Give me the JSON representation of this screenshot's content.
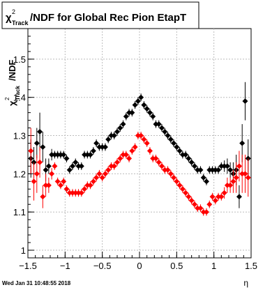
{
  "chart_data": {
    "type": "scatter",
    "title": "/NDF for Global Rec Pion EtapT",
    "title_prefix": "χ",
    "title_sup": "2",
    "title_sub": "Track",
    "xlabel": "η",
    "ylabel": "/NDF",
    "ylabel_prefix": "χ",
    "ylabel_sup": "2",
    "ylabel_sub": "Track",
    "xlim": [
      -1.5,
      1.5
    ],
    "ylim": [
      0.98,
      1.58
    ],
    "xticks": [
      {
        "v": -1.5,
        "label": "−1.5"
      },
      {
        "v": -1.0,
        "label": "−1"
      },
      {
        "v": -0.5,
        "label": "−0.5"
      },
      {
        "v": 0.0,
        "label": "0"
      },
      {
        "v": 0.5,
        "label": "0.5"
      },
      {
        "v": 1.0,
        "label": "1"
      },
      {
        "v": 1.5,
        "label": "1.5"
      }
    ],
    "yticks": [
      {
        "v": 1.0,
        "label": "1"
      },
      {
        "v": 1.1,
        "label": "1.1"
      },
      {
        "v": 1.2,
        "label": "1.2"
      },
      {
        "v": 1.3,
        "label": "1.3"
      },
      {
        "v": 1.4,
        "label": "1.4"
      },
      {
        "v": 1.5,
        "label": "1.5"
      }
    ],
    "grid": true,
    "series": [
      {
        "color": "#000000",
        "points": [
          {
            "x": -1.46,
            "y": 1.24,
            "e": 0.05
          },
          {
            "x": -1.42,
            "y": 1.23,
            "e": 0.04
          },
          {
            "x": -1.38,
            "y": 1.28,
            "e": 0.04
          },
          {
            "x": -1.34,
            "y": 1.31,
            "e": 0.05
          },
          {
            "x": -1.3,
            "y": 1.27,
            "e": 0.04
          },
          {
            "x": -1.26,
            "y": 1.21,
            "e": 0.03
          },
          {
            "x": -1.22,
            "y": 1.22,
            "e": 0.02
          },
          {
            "x": -1.18,
            "y": 1.25,
            "e": 0.015
          },
          {
            "x": -1.14,
            "y": 1.25,
            "e": 0.01
          },
          {
            "x": -1.1,
            "y": 1.25,
            "e": 0.01
          },
          {
            "x": -1.06,
            "y": 1.25,
            "e": 0.01
          },
          {
            "x": -1.02,
            "y": 1.25,
            "e": 0.01
          },
          {
            "x": -0.98,
            "y": 1.24,
            "e": 0.01
          },
          {
            "x": -0.94,
            "y": 1.21,
            "e": 0.01
          },
          {
            "x": -0.9,
            "y": 1.22,
            "e": 0.01
          },
          {
            "x": -0.86,
            "y": 1.23,
            "e": 0.01
          },
          {
            "x": -0.82,
            "y": 1.22,
            "e": 0.01
          },
          {
            "x": -0.78,
            "y": 1.22,
            "e": 0.01
          },
          {
            "x": -0.74,
            "y": 1.25,
            "e": 0.01
          },
          {
            "x": -0.7,
            "y": 1.25,
            "e": 0.01
          },
          {
            "x": -0.66,
            "y": 1.25,
            "e": 0.01
          },
          {
            "x": -0.62,
            "y": 1.26,
            "e": 0.01
          },
          {
            "x": -0.58,
            "y": 1.28,
            "e": 0.01
          },
          {
            "x": -0.54,
            "y": 1.27,
            "e": 0.01
          },
          {
            "x": -0.5,
            "y": 1.27,
            "e": 0.01
          },
          {
            "x": -0.46,
            "y": 1.27,
            "e": 0.01
          },
          {
            "x": -0.42,
            "y": 1.29,
            "e": 0.01
          },
          {
            "x": -0.38,
            "y": 1.3,
            "e": 0.01
          },
          {
            "x": -0.34,
            "y": 1.3,
            "e": 0.01
          },
          {
            "x": -0.3,
            "y": 1.31,
            "e": 0.01
          },
          {
            "x": -0.26,
            "y": 1.32,
            "e": 0.01
          },
          {
            "x": -0.22,
            "y": 1.33,
            "e": 0.01
          },
          {
            "x": -0.18,
            "y": 1.35,
            "e": 0.01
          },
          {
            "x": -0.14,
            "y": 1.36,
            "e": 0.01
          },
          {
            "x": -0.1,
            "y": 1.36,
            "e": 0.01
          },
          {
            "x": -0.06,
            "y": 1.38,
            "e": 0.01
          },
          {
            "x": -0.02,
            "y": 1.39,
            "e": 0.01
          },
          {
            "x": 0.02,
            "y": 1.4,
            "e": 0.01
          },
          {
            "x": 0.06,
            "y": 1.38,
            "e": 0.01
          },
          {
            "x": 0.1,
            "y": 1.37,
            "e": 0.01
          },
          {
            "x": 0.14,
            "y": 1.36,
            "e": 0.01
          },
          {
            "x": 0.18,
            "y": 1.35,
            "e": 0.01
          },
          {
            "x": 0.22,
            "y": 1.33,
            "e": 0.01
          },
          {
            "x": 0.26,
            "y": 1.33,
            "e": 0.01
          },
          {
            "x": 0.3,
            "y": 1.32,
            "e": 0.01
          },
          {
            "x": 0.34,
            "y": 1.31,
            "e": 0.01
          },
          {
            "x": 0.38,
            "y": 1.3,
            "e": 0.01
          },
          {
            "x": 0.42,
            "y": 1.29,
            "e": 0.01
          },
          {
            "x": 0.46,
            "y": 1.28,
            "e": 0.01
          },
          {
            "x": 0.5,
            "y": 1.27,
            "e": 0.01
          },
          {
            "x": 0.54,
            "y": 1.26,
            "e": 0.01
          },
          {
            "x": 0.58,
            "y": 1.25,
            "e": 0.01
          },
          {
            "x": 0.62,
            "y": 1.25,
            "e": 0.01
          },
          {
            "x": 0.66,
            "y": 1.24,
            "e": 0.01
          },
          {
            "x": 0.7,
            "y": 1.23,
            "e": 0.01
          },
          {
            "x": 0.74,
            "y": 1.22,
            "e": 0.01
          },
          {
            "x": 0.78,
            "y": 1.21,
            "e": 0.01
          },
          {
            "x": 0.82,
            "y": 1.21,
            "e": 0.01
          },
          {
            "x": 0.86,
            "y": 1.19,
            "e": 0.01
          },
          {
            "x": 0.9,
            "y": 1.18,
            "e": 0.01
          },
          {
            "x": 0.94,
            "y": 1.21,
            "e": 0.01
          },
          {
            "x": 0.98,
            "y": 1.21,
            "e": 0.01
          },
          {
            "x": 1.02,
            "y": 1.21,
            "e": 0.01
          },
          {
            "x": 1.06,
            "y": 1.21,
            "e": 0.01
          },
          {
            "x": 1.1,
            "y": 1.22,
            "e": 0.01
          },
          {
            "x": 1.14,
            "y": 1.22,
            "e": 0.015
          },
          {
            "x": 1.18,
            "y": 1.22,
            "e": 0.02
          },
          {
            "x": 1.22,
            "y": 1.21,
            "e": 0.02
          },
          {
            "x": 1.26,
            "y": 1.2,
            "e": 0.03
          },
          {
            "x": 1.3,
            "y": 1.21,
            "e": 0.04
          },
          {
            "x": 1.34,
            "y": 1.14,
            "e": 0.03
          },
          {
            "x": 1.38,
            "y": 1.28,
            "e": 0.05
          },
          {
            "x": 1.42,
            "y": 1.39,
            "e": 0.05
          },
          {
            "x": 1.46,
            "y": 1.24,
            "e": 0.05
          }
        ]
      },
      {
        "color": "#ff0000",
        "points": [
          {
            "x": -1.46,
            "y": 1.26,
            "e": 0.06
          },
          {
            "x": -1.42,
            "y": 1.18,
            "e": 0.05
          },
          {
            "x": -1.38,
            "y": 1.2,
            "e": 0.05
          },
          {
            "x": -1.34,
            "y": 1.23,
            "e": 0.04
          },
          {
            "x": -1.3,
            "y": 1.14,
            "e": 0.03
          },
          {
            "x": -1.26,
            "y": 1.17,
            "e": 0.03
          },
          {
            "x": -1.22,
            "y": 1.17,
            "e": 0.02
          },
          {
            "x": -1.18,
            "y": 1.2,
            "e": 0.015
          },
          {
            "x": -1.14,
            "y": 1.22,
            "e": 0.01
          },
          {
            "x": -1.1,
            "y": 1.18,
            "e": 0.01
          },
          {
            "x": -1.06,
            "y": 1.17,
            "e": 0.01
          },
          {
            "x": -1.02,
            "y": 1.18,
            "e": 0.01
          },
          {
            "x": -0.98,
            "y": 1.16,
            "e": 0.01
          },
          {
            "x": -0.94,
            "y": 1.15,
            "e": 0.01
          },
          {
            "x": -0.9,
            "y": 1.15,
            "e": 0.01
          },
          {
            "x": -0.86,
            "y": 1.15,
            "e": 0.01
          },
          {
            "x": -0.82,
            "y": 1.15,
            "e": 0.01
          },
          {
            "x": -0.78,
            "y": 1.15,
            "e": 0.01
          },
          {
            "x": -0.74,
            "y": 1.16,
            "e": 0.01
          },
          {
            "x": -0.7,
            "y": 1.17,
            "e": 0.01
          },
          {
            "x": -0.66,
            "y": 1.17,
            "e": 0.01
          },
          {
            "x": -0.62,
            "y": 1.18,
            "e": 0.01
          },
          {
            "x": -0.58,
            "y": 1.19,
            "e": 0.01
          },
          {
            "x": -0.54,
            "y": 1.2,
            "e": 0.01
          },
          {
            "x": -0.5,
            "y": 1.19,
            "e": 0.01
          },
          {
            "x": -0.46,
            "y": 1.2,
            "e": 0.01
          },
          {
            "x": -0.42,
            "y": 1.21,
            "e": 0.01
          },
          {
            "x": -0.38,
            "y": 1.22,
            "e": 0.01
          },
          {
            "x": -0.34,
            "y": 1.22,
            "e": 0.01
          },
          {
            "x": -0.3,
            "y": 1.23,
            "e": 0.01
          },
          {
            "x": -0.26,
            "y": 1.24,
            "e": 0.01
          },
          {
            "x": -0.22,
            "y": 1.25,
            "e": 0.01
          },
          {
            "x": -0.18,
            "y": 1.25,
            "e": 0.01
          },
          {
            "x": -0.14,
            "y": 1.24,
            "e": 0.01
          },
          {
            "x": -0.1,
            "y": 1.26,
            "e": 0.01
          },
          {
            "x": -0.06,
            "y": 1.27,
            "e": 0.01
          },
          {
            "x": -0.02,
            "y": 1.3,
            "e": 0.01
          },
          {
            "x": 0.02,
            "y": 1.3,
            "e": 0.01
          },
          {
            "x": 0.06,
            "y": 1.29,
            "e": 0.01
          },
          {
            "x": 0.1,
            "y": 1.28,
            "e": 0.01
          },
          {
            "x": 0.14,
            "y": 1.26,
            "e": 0.01
          },
          {
            "x": 0.18,
            "y": 1.24,
            "e": 0.01
          },
          {
            "x": 0.22,
            "y": 1.24,
            "e": 0.01
          },
          {
            "x": 0.26,
            "y": 1.23,
            "e": 0.01
          },
          {
            "x": 0.3,
            "y": 1.22,
            "e": 0.01
          },
          {
            "x": 0.34,
            "y": 1.21,
            "e": 0.01
          },
          {
            "x": 0.38,
            "y": 1.21,
            "e": 0.01
          },
          {
            "x": 0.42,
            "y": 1.2,
            "e": 0.01
          },
          {
            "x": 0.46,
            "y": 1.19,
            "e": 0.01
          },
          {
            "x": 0.5,
            "y": 1.18,
            "e": 0.01
          },
          {
            "x": 0.54,
            "y": 1.17,
            "e": 0.01
          },
          {
            "x": 0.58,
            "y": 1.16,
            "e": 0.01
          },
          {
            "x": 0.62,
            "y": 1.15,
            "e": 0.01
          },
          {
            "x": 0.66,
            "y": 1.14,
            "e": 0.01
          },
          {
            "x": 0.7,
            "y": 1.13,
            "e": 0.01
          },
          {
            "x": 0.74,
            "y": 1.12,
            "e": 0.01
          },
          {
            "x": 0.78,
            "y": 1.11,
            "e": 0.01
          },
          {
            "x": 0.82,
            "y": 1.11,
            "e": 0.01
          },
          {
            "x": 0.86,
            "y": 1.1,
            "e": 0.01
          },
          {
            "x": 0.9,
            "y": 1.1,
            "e": 0.01
          },
          {
            "x": 0.94,
            "y": 1.12,
            "e": 0.01
          },
          {
            "x": 0.98,
            "y": 1.14,
            "e": 0.01
          },
          {
            "x": 1.02,
            "y": 1.13,
            "e": 0.01
          },
          {
            "x": 1.06,
            "y": 1.14,
            "e": 0.01
          },
          {
            "x": 1.1,
            "y": 1.14,
            "e": 0.01
          },
          {
            "x": 1.14,
            "y": 1.15,
            "e": 0.015
          },
          {
            "x": 1.18,
            "y": 1.17,
            "e": 0.02
          },
          {
            "x": 1.22,
            "y": 1.17,
            "e": 0.02
          },
          {
            "x": 1.26,
            "y": 1.18,
            "e": 0.03
          },
          {
            "x": 1.3,
            "y": 1.19,
            "e": 0.04
          },
          {
            "x": 1.34,
            "y": 1.22,
            "e": 0.04
          },
          {
            "x": 1.38,
            "y": 1.2,
            "e": 0.05
          },
          {
            "x": 1.42,
            "y": 1.2,
            "e": 0.05
          },
          {
            "x": 1.46,
            "y": 1.19,
            "e": 0.05
          }
        ]
      }
    ]
  },
  "footer": {
    "timestamp": "Wed Jan 31 10:48:55 2018"
  }
}
